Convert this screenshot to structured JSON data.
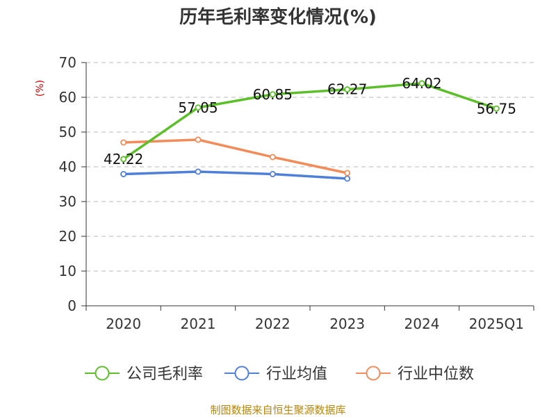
{
  "chart_data": {
    "type": "line",
    "title": "历年毛利率变化情况(%)",
    "ylabel": "(%)",
    "xlabel": "",
    "categories": [
      "2020",
      "2021",
      "2022",
      "2023",
      "2024",
      "2025Q1"
    ],
    "ylim": [
      0,
      70
    ],
    "yticks": [
      0,
      10,
      20,
      30,
      40,
      50,
      60,
      70
    ],
    "grid": true,
    "legend_position": "bottom",
    "series": [
      {
        "name": "公司毛利率",
        "color": "#5cbf2a",
        "values": [
          42.22,
          57.05,
          60.85,
          62.27,
          64.02,
          56.75
        ],
        "labels": [
          "42.22",
          "57.05",
          "60.85",
          "62.27",
          "64.02",
          "56.75"
        ]
      },
      {
        "name": "行业均值",
        "color": "#4f7fd6",
        "values": [
          37.9,
          38.6,
          37.9,
          36.6,
          null,
          null
        ]
      },
      {
        "name": "行业中位数",
        "color": "#f28c5a",
        "values": [
          47.0,
          47.8,
          42.8,
          38.2,
          null,
          null
        ]
      }
    ]
  },
  "source_text": "制图数据来自恒生聚源数据库"
}
